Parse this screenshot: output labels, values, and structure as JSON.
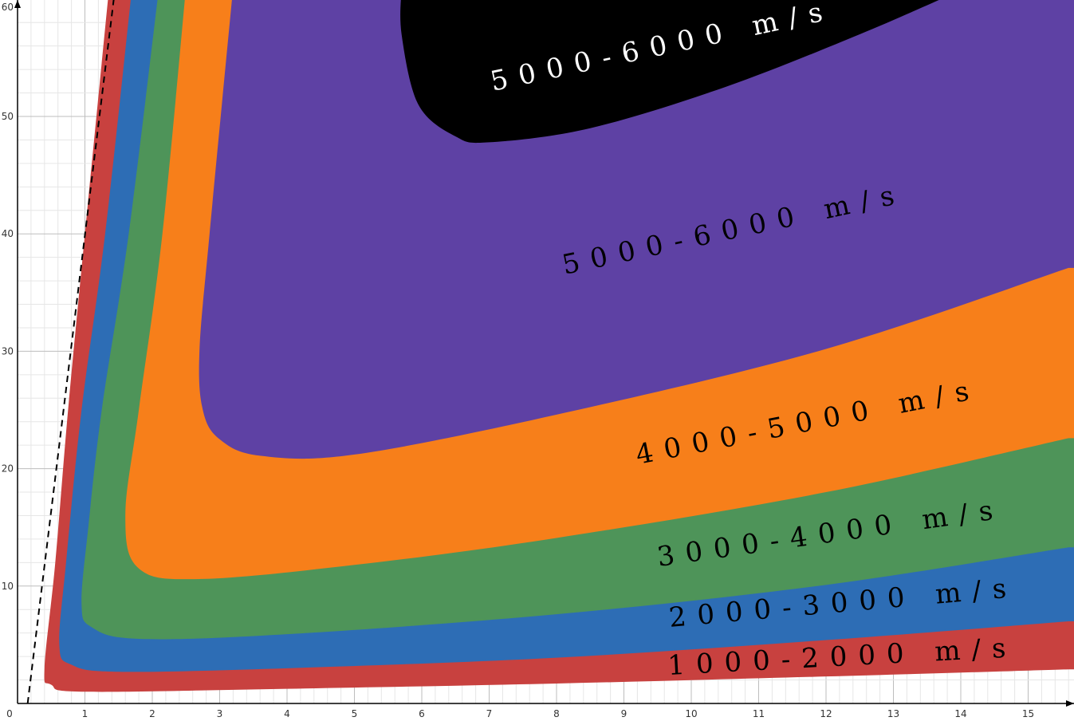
{
  "chart_data": {
    "type": "area",
    "title": "",
    "xlabel": "",
    "ylabel": "",
    "xlim": [
      0,
      15.6
    ],
    "ylim": [
      0,
      61
    ],
    "xticks": [
      0,
      1,
      2,
      3,
      4,
      5,
      6,
      7,
      8,
      9,
      10,
      11,
      12,
      13,
      14,
      15
    ],
    "yticks": [
      10,
      20,
      30,
      40,
      50,
      60
    ],
    "grid": true,
    "legend": "none",
    "asymptote_line": {
      "style": "dashed",
      "color": "#000000",
      "from": [
        0.15,
        0
      ],
      "to": [
        1.45,
        61
      ]
    },
    "bands": [
      {
        "label": "1000-2000 m/s",
        "color": "#c8413f",
        "label_color": "#000000",
        "outer": [
          [
            1.36,
            61
          ],
          [
            1.0,
            40
          ],
          [
            0.75,
            25
          ],
          [
            0.56,
            12
          ],
          [
            0.4,
            3
          ],
          [
            0.5,
            1.6
          ],
          [
            1.0,
            1.0
          ],
          [
            4,
            1.25
          ],
          [
            8,
            1.7
          ],
          [
            12,
            2.3
          ],
          [
            15.6,
            2.9
          ]
        ]
      },
      {
        "label": "2000-3000 m/s",
        "color": "#2d6db5",
        "label_color": "#000000",
        "outer": [
          [
            1.7,
            61
          ],
          [
            1.3,
            40
          ],
          [
            0.95,
            25
          ],
          [
            0.72,
            12
          ],
          [
            0.62,
            5
          ],
          [
            0.8,
            3.3
          ],
          [
            1.5,
            2.7
          ],
          [
            4,
            3.0
          ],
          [
            8,
            3.9
          ],
          [
            12,
            5.4
          ],
          [
            15.6,
            7.0
          ]
        ]
      },
      {
        "label": "3000-4000 m/s",
        "color": "#4e9459",
        "label_color": "#000000",
        "outer": [
          [
            2.1,
            61
          ],
          [
            1.65,
            40
          ],
          [
            1.25,
            25
          ],
          [
            1.05,
            15
          ],
          [
            0.95,
            8.5
          ],
          [
            1.1,
            6.5
          ],
          [
            1.8,
            5.5
          ],
          [
            4,
            5.9
          ],
          [
            8,
            7.6
          ],
          [
            12,
            10.1
          ],
          [
            15.6,
            13.3
          ]
        ]
      },
      {
        "label": "4000-5000 m/s",
        "color": "#f77f1a",
        "label_color": "#000000",
        "outer": [
          [
            2.5,
            61
          ],
          [
            2.15,
            40
          ],
          [
            1.8,
            25
          ],
          [
            1.6,
            16
          ],
          [
            1.8,
            11.5
          ],
          [
            2.7,
            10.6
          ],
          [
            5,
            11.8
          ],
          [
            8,
            14.1
          ],
          [
            12,
            18.0
          ],
          [
            15.6,
            22.6
          ]
        ]
      },
      {
        "label": "5000-6000 m/s",
        "color": "#5e41a4",
        "label_color": "#000000",
        "outer": [
          [
            3.2,
            61
          ],
          [
            2.85,
            40
          ],
          [
            2.7,
            30
          ],
          [
            2.75,
            25
          ],
          [
            3.0,
            22.5
          ],
          [
            3.6,
            21.1
          ],
          [
            5,
            21.2
          ],
          [
            8,
            24.6
          ],
          [
            12,
            30.2
          ],
          [
            15.6,
            37.1
          ]
        ]
      },
      {
        "label": "5000-6000 m/s",
        "color": "#000000",
        "label_color": "#ffffff",
        "outer": [
          [
            5.7,
            61
          ],
          [
            5.7,
            57
          ],
          [
            5.95,
            51
          ],
          [
            6.5,
            48.3
          ],
          [
            7.0,
            47.8
          ],
          [
            8.5,
            49.0
          ],
          [
            10.5,
            52.5
          ],
          [
            12.5,
            57
          ],
          [
            14.1,
            61
          ]
        ]
      }
    ]
  },
  "labels": [
    {
      "text": "5000-6000 m/s",
      "color": "#ffffff"
    },
    {
      "text": "5000-6000 m/s",
      "color": "#000000"
    },
    {
      "text": "4000-5000 m/s",
      "color": "#000000"
    },
    {
      "text": "3000-4000 m/s",
      "color": "#000000"
    },
    {
      "text": "2000-3000 m/s",
      "color": "#000000"
    },
    {
      "text": "1000-2000 m/s",
      "color": "#000000"
    }
  ]
}
